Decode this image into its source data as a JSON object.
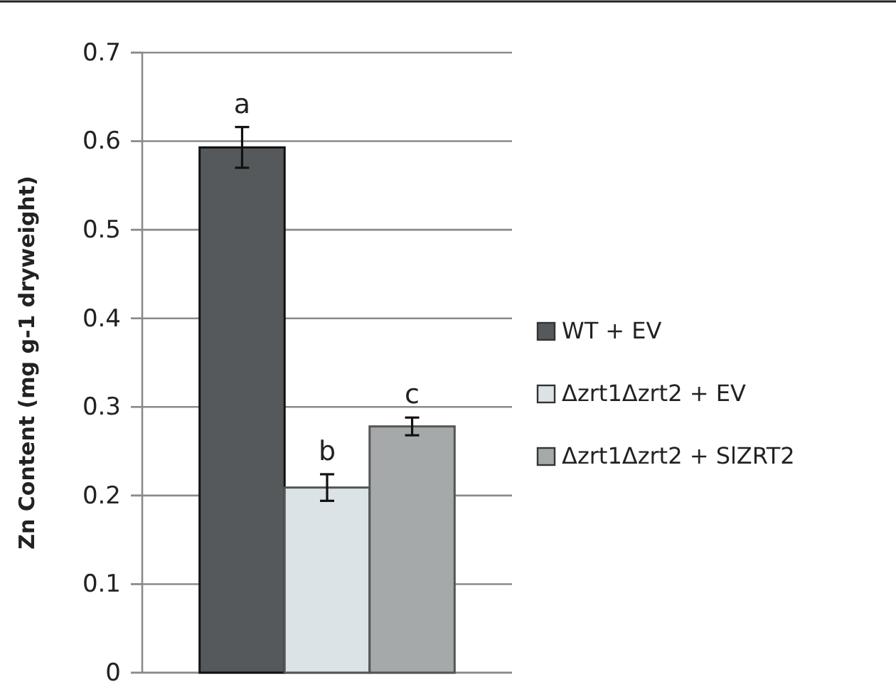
{
  "chart_data": {
    "type": "bar",
    "ylabel": "Zn Content (mg g-1 dryweight)",
    "categories": [
      null
    ],
    "series": [
      {
        "name": "WT + EV",
        "color": "#55595c",
        "values": [
          0.593
        ],
        "errors": [
          0.023
        ]
      },
      {
        "name": "Δzrt1Δzrt2 + EV",
        "color": "#dce3e6",
        "values": [
          0.209
        ],
        "errors": [
          0.015
        ]
      },
      {
        "name": "Δzrt1Δzrt2 + SlZRT2",
        "color": "#a6a9aa",
        "values": [
          0.278
        ],
        "errors": [
          0.01
        ]
      }
    ],
    "annotations": [
      "a",
      "b",
      "c"
    ],
    "ylim": [
      0,
      0.7
    ],
    "yticks": [
      0,
      0.1,
      0.2,
      0.3,
      0.4,
      0.5,
      0.6,
      0.7
    ],
    "grid": "y",
    "legend": "right"
  }
}
